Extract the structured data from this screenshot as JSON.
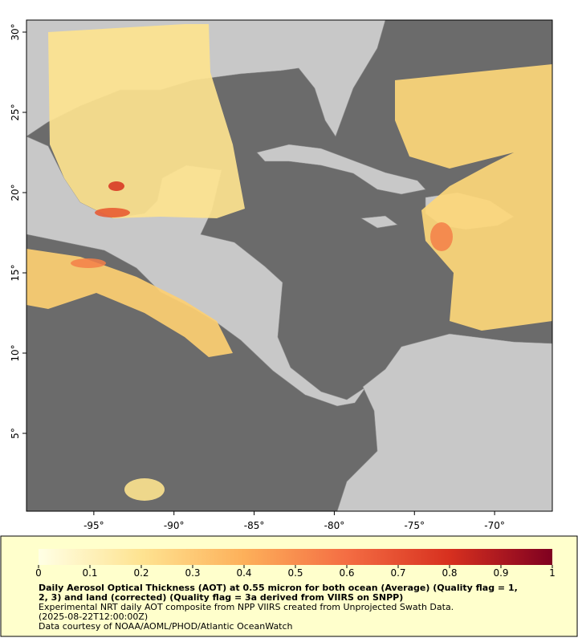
{
  "chart_data": {
    "type": "map",
    "xlim": [
      -99.2,
      -66.4
    ],
    "ylim": [
      0.15,
      30.75
    ],
    "xticks": [
      {
        "value": -95,
        "label": "-95°"
      },
      {
        "value": -90,
        "label": "-90°"
      },
      {
        "value": -85,
        "label": "-85°"
      },
      {
        "value": -80,
        "label": "-80°"
      },
      {
        "value": -75,
        "label": "-75°"
      },
      {
        "value": -70,
        "label": "-70°"
      }
    ],
    "yticks": [
      {
        "value": 5,
        "label": "5°"
      },
      {
        "value": 10,
        "label": "10°"
      },
      {
        "value": 15,
        "label": "15°"
      },
      {
        "value": 20,
        "label": "20°"
      },
      {
        "value": 25,
        "label": "25°"
      },
      {
        "value": 30,
        "label": "30°"
      }
    ],
    "colorbar": {
      "lim": [
        0,
        1
      ],
      "ticks": [
        0,
        0.1,
        0.2,
        0.3,
        0.4,
        0.5,
        0.6,
        0.7,
        0.8,
        0.9,
        1
      ]
    },
    "caption_bold": [
      "Daily Aerosol Optical Thickness (AOT) at 0.55 micron for both ocean (Average) (Quality flag = 1,",
      "2, 3) and land (corrected) (Quality flag = 3a derived from VIIRS on SNPP)"
    ],
    "caption": [
      "Experimental NRT daily AOT composite from NPP VIIRS created from Unprojected Swath Data.",
      "(2025-08-22T12:00:00Z)",
      "Data courtesy of NOAA/AOML/PHOD/Atlantic OceanWatch"
    ]
  }
}
